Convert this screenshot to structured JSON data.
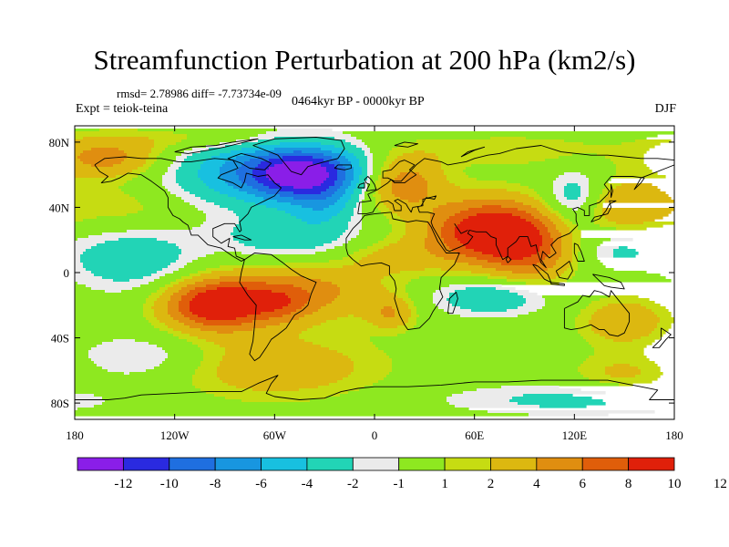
{
  "title": "Streamfunction Perturbation at 200 hPa (km2/s)",
  "stats_text": "rmsd= 2.78986 diff= -7.73734e-09",
  "expt_text": "Expt = teiok-teina",
  "period_text": "0464kyr BP - 0000kyr BP",
  "season_text": "DJF",
  "colors": {
    "palette": [
      "#8a1ee8",
      "#2a2ae0",
      "#1f6fe0",
      "#1896e0",
      "#18c0e0",
      "#22d4b6",
      "#ebebeb",
      "#8ee820",
      "#c6dc12",
      "#dcb810",
      "#e08e10",
      "#e05e0a",
      "#e0200a"
    ]
  },
  "chart_data": {
    "type": "filled-contour-map",
    "title": "Streamfunction Perturbation at 200 hPa (km2/s)",
    "projection": "cylindrical-equidistant",
    "xlim": [
      -180,
      180
    ],
    "ylim": [
      -90,
      90
    ],
    "x_ticks": [
      {
        "value": -180,
        "label": "180"
      },
      {
        "value": -120,
        "label": "120W"
      },
      {
        "value": -60,
        "label": "60W"
      },
      {
        "value": 0,
        "label": "0"
      },
      {
        "value": 60,
        "label": "60E"
      },
      {
        "value": 120,
        "label": "120E"
      },
      {
        "value": 180,
        "label": "180"
      }
    ],
    "y_ticks": [
      {
        "value": 80,
        "label": "80N"
      },
      {
        "value": 40,
        "label": "40N"
      },
      {
        "value": 0,
        "label": "0"
      },
      {
        "value": -40,
        "label": "40S"
      },
      {
        "value": -80,
        "label": "80S"
      }
    ],
    "colorbar": {
      "levels": [
        "-12",
        "-10",
        "-8",
        "-6",
        "-4",
        "-2",
        "-1",
        "1",
        "2",
        "4",
        "6",
        "8",
        "10",
        "12"
      ]
    },
    "features": [
      {
        "name": "south-asia-high",
        "lon": 70,
        "lat": 25,
        "value": 11,
        "sx": 26,
        "sy": 14
      },
      {
        "name": "south-asia-ext",
        "lon": 95,
        "lat": 10,
        "value": 4,
        "sx": 18,
        "sy": 14
      },
      {
        "name": "south-pacific-high",
        "lon": -95,
        "lat": -20,
        "value": 10,
        "sx": 22,
        "sy": 11
      },
      {
        "name": "south-pacific-ext",
        "lon": -45,
        "lat": -12,
        "value": 5,
        "sx": 35,
        "sy": 12
      },
      {
        "name": "south-atlantic-pos",
        "lon": 10,
        "lat": -25,
        "value": 3.5,
        "sx": 10,
        "sy": 7
      },
      {
        "name": "southern-ocean-pos",
        "lon": -60,
        "lat": -58,
        "value": 3.5,
        "sx": 45,
        "sy": 14
      },
      {
        "name": "australia-pos",
        "lon": 150,
        "lat": -30,
        "value": 4,
        "sx": 18,
        "sy": 10
      },
      {
        "name": "se-indian-pos",
        "lon": 150,
        "lat": -62,
        "value": 2.5,
        "sx": 22,
        "sy": 9
      },
      {
        "name": "canada-low",
        "lon": -40,
        "lat": 60,
        "value": -10,
        "sx": 25,
        "sy": 12
      },
      {
        "name": "north-atlantic-low",
        "lon": -70,
        "lat": 62,
        "value": -6,
        "sx": 40,
        "sy": 14
      },
      {
        "name": "europe-high",
        "lon": 15,
        "lat": 55,
        "value": 6,
        "sx": 18,
        "sy": 12
      },
      {
        "name": "arctic-asia-pos",
        "lon": -160,
        "lat": 70,
        "value": 5,
        "sx": 25,
        "sy": 9
      },
      {
        "name": "arctic-east-pos",
        "lon": 80,
        "lat": 75,
        "value": 1.8,
        "sx": 50,
        "sy": 7
      },
      {
        "name": "north-pacific-pos",
        "lon": 150,
        "lat": 40,
        "value": 4,
        "sx": 20,
        "sy": 12
      },
      {
        "name": "east-asia-low",
        "lon": 120,
        "lat": 45,
        "value": -4,
        "sx": 12,
        "sy": 12
      },
      {
        "name": "east-pacific-pos",
        "lon": -150,
        "lat": 40,
        "value": 1.8,
        "sx": 25,
        "sy": 10
      },
      {
        "name": "tropical-atlantic-low",
        "lon": -50,
        "lat": 22,
        "value": -3.5,
        "sx": 30,
        "sy": 10
      },
      {
        "name": "pacific-tropical-low",
        "lon": -145,
        "lat": 8,
        "value": -3.5,
        "sx": 28,
        "sy": 14
      },
      {
        "name": "indian-ocean-low",
        "lon": 70,
        "lat": -15,
        "value": -4,
        "sx": 25,
        "sy": 8
      },
      {
        "name": "west-pacific-low",
        "lon": 145,
        "lat": 15,
        "value": -2.5,
        "sx": 18,
        "sy": 10
      },
      {
        "name": "antarctic-low",
        "lon": 120,
        "lat": -78,
        "value": -2.5,
        "sx": 60,
        "sy": 7
      },
      {
        "name": "south-pacific-low",
        "lon": -140,
        "lat": -52,
        "value": -2.5,
        "sx": 30,
        "sy": 10
      },
      {
        "name": "africa-pos",
        "lon": 10,
        "lat": 10,
        "value": 2.5,
        "sx": 22,
        "sy": 8
      },
      {
        "name": "arctic-pos",
        "lon": -100,
        "lat": 82,
        "value": 2,
        "sx": 40,
        "sy": 5
      },
      {
        "name": "mid-atlantic-low",
        "lon": -30,
        "lat": 40,
        "value": -2.5,
        "sx": 12,
        "sy": 8
      },
      {
        "name": "south-america-pos",
        "lon": -55,
        "lat": -20,
        "value": 2.5,
        "sx": 12,
        "sy": 8
      }
    ]
  }
}
